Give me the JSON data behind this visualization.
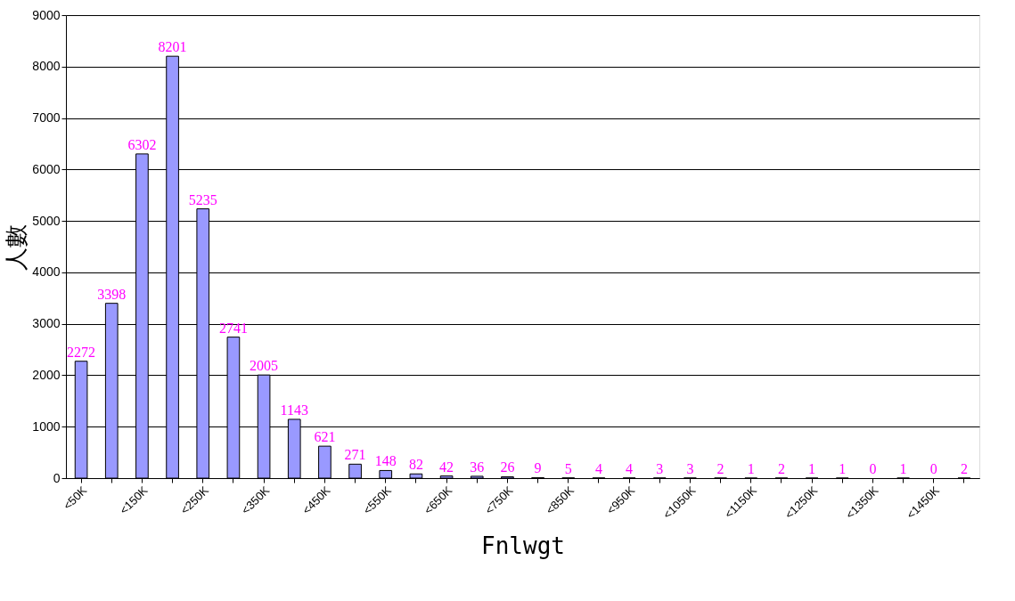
{
  "chart_data": {
    "type": "bar",
    "xlabel": "Fnlwgt",
    "ylabel": "人數",
    "categories": [
      "<50K",
      null,
      "<150K",
      null,
      "<250K",
      null,
      "<350K",
      null,
      "<450K",
      null,
      "<550K",
      null,
      "<650K",
      null,
      "<750K",
      null,
      "<850K",
      null,
      "<950K",
      null,
      "<1050K",
      null,
      "<1150K",
      null,
      "<1250K",
      null,
      "<1350K",
      null,
      "<1450K",
      null
    ],
    "values": [
      2272,
      3398,
      6302,
      8201,
      5235,
      2741,
      2005,
      1143,
      621,
      271,
      148,
      82,
      42,
      36,
      26,
      9,
      5,
      4,
      4,
      3,
      3,
      2,
      1,
      2,
      1,
      1,
      0,
      1,
      0,
      2
    ],
    "color": "#9999ff",
    "ylim": [
      0,
      9000
    ],
    "yticks": [
      0,
      1000,
      2000,
      3000,
      4000,
      5000,
      6000,
      7000,
      8000,
      9000
    ],
    "grid": "y",
    "data_labels": true
  }
}
